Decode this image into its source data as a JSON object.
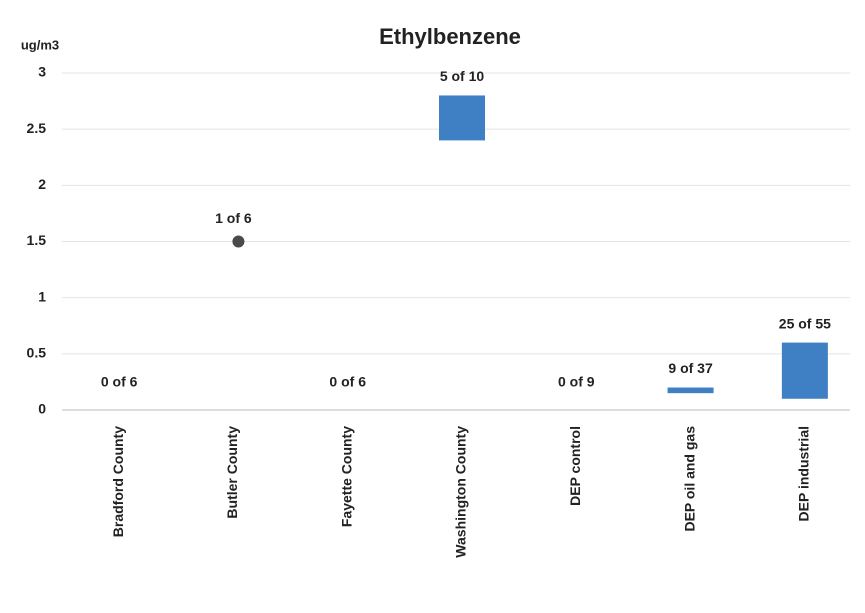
{
  "chart_data": {
    "type": "range",
    "title": "Ethylbenzene",
    "y_label": "ug/m3",
    "categories": [
      "Bradford County",
      "Butler County",
      "Fayette County",
      "Washington County",
      "DEP control",
      "DEP oil and gas",
      "DEP industrial"
    ],
    "series": [
      {
        "color": "#3f7fc4",
        "values": [
          null,
          null,
          null,
          2.4,
          null,
          0.15,
          0.1
        ]
      },
      {
        "color": "#3f7fc4",
        "values": [
          null,
          null,
          null,
          2.8,
          null,
          0.2,
          0.6
        ]
      }
    ],
    "points": {
      "color": "#4a4a4a",
      "values": [
        null,
        1.5,
        null,
        null,
        null,
        null,
        null
      ]
    },
    "annotations": [
      "0 of 6",
      "1 of 6",
      "0 of 6",
      "5 of 10",
      "0 of 9",
      "9 of 37",
      "25 of 55"
    ],
    "ylim": [
      0,
      3
    ],
    "yticks": [
      0,
      0.5,
      1,
      1.5,
      2,
      2.5,
      3
    ],
    "grid": true
  }
}
